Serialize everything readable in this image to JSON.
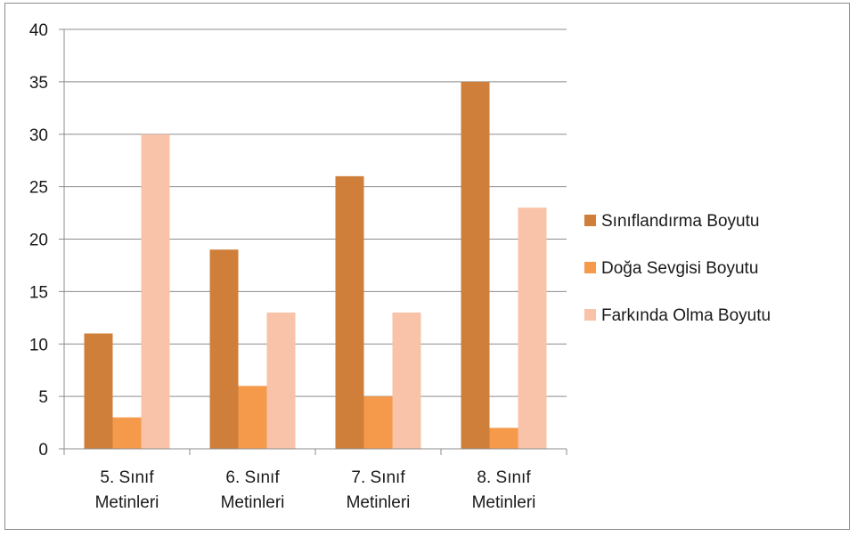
{
  "chart_data": {
    "type": "bar",
    "categories": [
      [
        "5. Sınıf",
        "Metinleri"
      ],
      [
        "6. Sınıf",
        "Metinleri"
      ],
      [
        "7. Sınıf",
        "Metinleri"
      ],
      [
        "8. Sınıf",
        "Metinleri"
      ]
    ],
    "series": [
      {
        "name": "Sınıflandırma Boyutu",
        "values": [
          11,
          19,
          26,
          35
        ],
        "color": "#d07f3a"
      },
      {
        "name": "Doğa Sevgisi Boyutu",
        "values": [
          3,
          6,
          5,
          2
        ],
        "color": "#f59a4b"
      },
      {
        "name": "Farkında Olma Boyutu",
        "values": [
          30,
          13,
          13,
          23
        ],
        "color": "#f8c3a8"
      }
    ],
    "ylim": [
      0,
      40
    ],
    "yticks": [
      0,
      5,
      10,
      15,
      20,
      25,
      30,
      35,
      40
    ],
    "grid": true,
    "gridline_color": "#8c8c8c",
    "legend_position": "right",
    "title": "",
    "xlabel": "",
    "ylabel": ""
  }
}
